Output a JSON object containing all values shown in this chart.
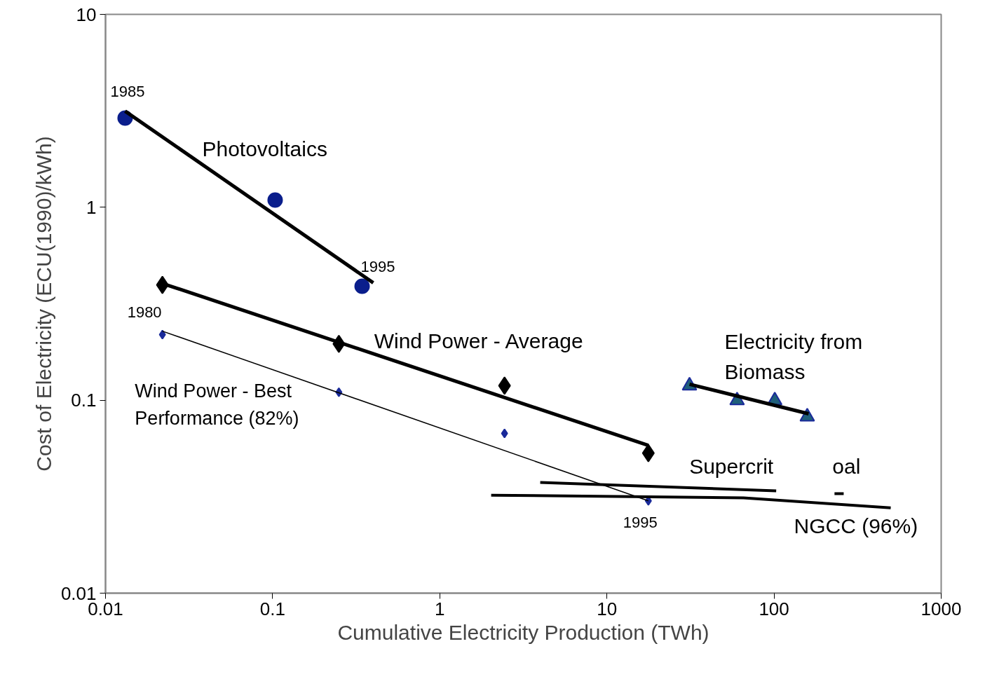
{
  "chart_data": {
    "type": "scatter",
    "xlabel": "Cumulative Electricity Production (TWh)",
    "ylabel": "Cost of Electricity (ECU(1990)/kWh)",
    "log": "xy",
    "grid": false,
    "xlim": [
      0.01,
      1000
    ],
    "xticks": [
      0.01,
      0.1,
      1,
      10,
      100,
      1000
    ],
    "ylim": [
      0.01,
      10
    ],
    "yticks": [
      0.01,
      0.1,
      1,
      10
    ],
    "series": [
      {
        "marker": "circle",
        "color": "#0a1e8c",
        "x": [
          0.0131,
          0.1035,
          0.343
        ],
        "values": [
          2.9,
          1.09,
          0.39
        ]
      },
      {
        "type": "line",
        "marker": "none",
        "color": "#000000",
        "x": [
          0.0131,
          0.4
        ],
        "values": [
          3.15,
          0.406
        ]
      },
      {
        "marker": "diamond",
        "color": "#000000",
        "x": [
          0.0219,
          0.249,
          2.44,
          17.7
        ],
        "values": [
          0.396,
          0.196,
          0.119,
          0.0532
        ]
      },
      {
        "type": "line",
        "marker": "none",
        "color": "#000000",
        "x": [
          0.0219,
          17.7
        ],
        "values": [
          0.403,
          0.0583
        ]
      },
      {
        "marker": "diamond",
        "color": "#1a2a9a",
        "x": [
          0.0219,
          0.249,
          2.44,
          17.7
        ],
        "values": [
          0.219,
          0.11,
          0.0673,
          0.0301
        ]
      },
      {
        "type": "line",
        "marker": "none",
        "color": "#000000",
        "x": [
          0.0219,
          17.7
        ],
        "values": [
          0.228,
          0.0301
        ]
      },
      {
        "marker": "triangle",
        "color": "#1f5f7a",
        "x": [
          31.2,
          60.1,
          101,
          158
        ],
        "values": [
          0.119,
          0.0997,
          0.0997,
          0.0822
        ]
      },
      {
        "type": "line",
        "marker": "none",
        "color": "#000000",
        "x": [
          31.2,
          161
        ],
        "values": [
          0.121,
          0.0851
        ]
      },
      {
        "type": "line",
        "marker": "none",
        "color": "#000000",
        "x": [
          2.03,
          65.6,
          499
        ],
        "values": [
          0.0322,
          0.0312,
          0.0277
        ]
      },
      {
        "type": "line",
        "marker": "none",
        "color": "#000000",
        "x": [
          3.99,
          103,
          160,
          230,
          261
        ],
        "values": [
          0.0375,
          0.0339,
          null,
          0.0328,
          0.0328
        ]
      }
    ],
    "annotations": [
      {
        "text": "1985",
        "x": 0.0131,
        "y": 2.9
      },
      {
        "text": "Photovoltaics",
        "x": 0.1035,
        "y": 1.09
      },
      {
        "text": "1995",
        "x": 0.343,
        "y": 0.39
      },
      {
        "text": "1980",
        "x": 0.0219,
        "y": 0.219
      },
      {
        "text": "Wind Power - Average",
        "x": 2.44,
        "y": 0.119
      },
      {
        "text": "Wind Power - Best\nPerformance (82%)",
        "x": 0.249,
        "y": 0.11
      },
      {
        "text": "Electricity from\nBiomass",
        "x": 31.2,
        "y": 0.119
      },
      {
        "text": "Supercrit",
        "x": 103,
        "y": 0.0339
      },
      {
        "text": "oal",
        "x": 230,
        "y": 0.0328
      },
      {
        "text": "1995",
        "x": 17.7,
        "y": 0.0301
      },
      {
        "text": "NGCC (96%)",
        "x": 499,
        "y": 0.0277
      }
    ]
  }
}
